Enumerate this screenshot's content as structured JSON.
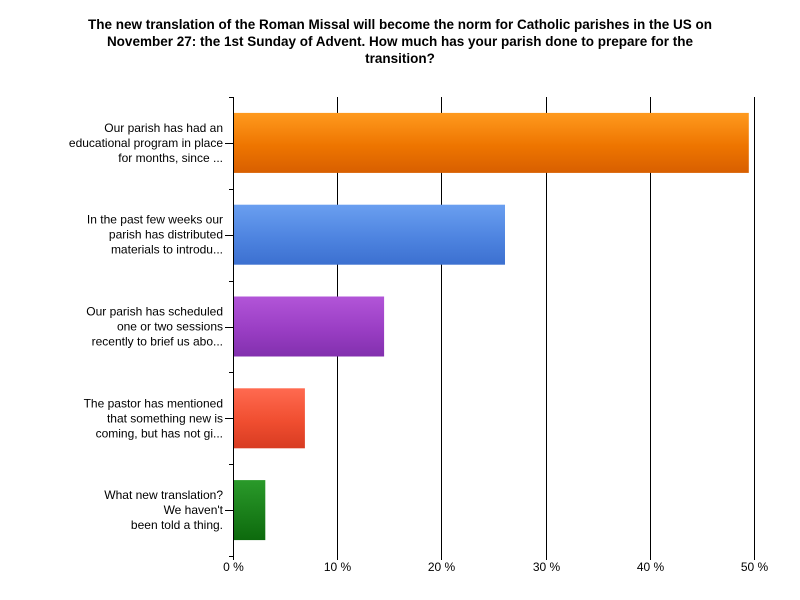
{
  "chart_data": {
    "type": "bar",
    "orientation": "horizontal",
    "title": "The new translation of the Roman Missal will become the norm for Catholic parishes in the US on\nNovember 27: the 1st Sunday of Advent. How much has your parish done to prepare for the\ntransition?",
    "categories": [
      [
        "Our parish has had an",
        "educational program in place",
        "for months, since ..."
      ],
      [
        "In the past few weeks our",
        "parish has distributed",
        "materials to introdu..."
      ],
      [
        "Our parish has scheduled",
        "one or two sessions",
        "recently to brief us abo..."
      ],
      [
        "The pastor has mentioned",
        "that something new is",
        "coming, but has not gi..."
      ],
      [
        "What new translation?",
        "We haven't",
        "been told a thing."
      ]
    ],
    "values": [
      49.5,
      26.1,
      14.5,
      6.9,
      3.1
    ],
    "xlim": [
      0,
      50
    ],
    "xticks": [
      "0 %",
      "10 %",
      "20 %",
      "30 %",
      "40 %",
      "50 %"
    ],
    "grid": true,
    "legend": "none",
    "colors": [
      [
        "#ff9a1e",
        "#ee7500",
        "#d85f00"
      ],
      [
        "#6a9ff0",
        "#4e84e0",
        "#3c70d0"
      ],
      [
        "#b255d8",
        "#9a3ec4",
        "#8230ae"
      ],
      [
        "#ff6a50",
        "#f04e30",
        "#d83c22"
      ],
      [
        "#2a9a2a",
        "#1a7f1a",
        "#0d6a0d"
      ]
    ]
  }
}
